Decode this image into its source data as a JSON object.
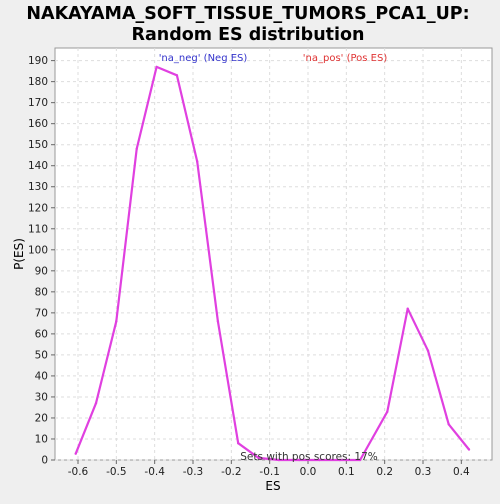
{
  "chart_data": {
    "type": "line",
    "title": "NAKAYAMA_SOFT_TISSUE_TUMORS_PCA1_UP:",
    "subtitle": "Random ES distribution",
    "xlabel": "ES",
    "ylabel": "P(ES)",
    "xlim": [
      -0.66,
      0.48
    ],
    "ylim": [
      0,
      196
    ],
    "x_ticks": [
      -0.6,
      -0.5,
      -0.4,
      -0.3,
      -0.2,
      -0.1,
      0.0,
      0.1,
      0.2,
      0.3,
      0.4
    ],
    "x_tick_labels": [
      "-0.6",
      "-0.5",
      "-0.4",
      "-0.3",
      "-0.2",
      "-0.1",
      "0.0",
      "0.1",
      "0.2",
      "0.3",
      "0.4"
    ],
    "y_ticks": [
      0,
      10,
      20,
      30,
      40,
      50,
      60,
      70,
      80,
      90,
      100,
      110,
      120,
      130,
      140,
      150,
      160,
      170,
      180,
      190
    ],
    "y_tick_labels": [
      "0",
      "10",
      "20",
      "30",
      "40",
      "50",
      "60",
      "70",
      "80",
      "90",
      "100",
      "110",
      "120",
      "130",
      "140",
      "150",
      "160",
      "170",
      "180",
      "190"
    ],
    "grid": true,
    "legend": [
      {
        "label": "'na_neg' (Neg ES)",
        "color": "#3333cc"
      },
      {
        "label": "'na_pos' (Pos ES)",
        "color": "#e03333"
      }
    ],
    "annotation": "Sets with pos scores: 17%",
    "series": [
      {
        "color": "#e040e0",
        "x": [
          -0.606,
          -0.553,
          -0.5,
          -0.447,
          -0.395,
          -0.342,
          -0.289,
          -0.235,
          -0.182,
          -0.129,
          -0.076,
          -0.023,
          0.03,
          0.083,
          0.136,
          0.207,
          0.26,
          0.313,
          0.367,
          0.42
        ],
        "y": [
          3,
          27,
          66,
          148,
          187,
          183,
          142,
          66,
          8,
          1,
          0,
          0,
          0,
          0,
          0,
          23,
          72,
          52,
          17,
          5
        ]
      }
    ]
  }
}
